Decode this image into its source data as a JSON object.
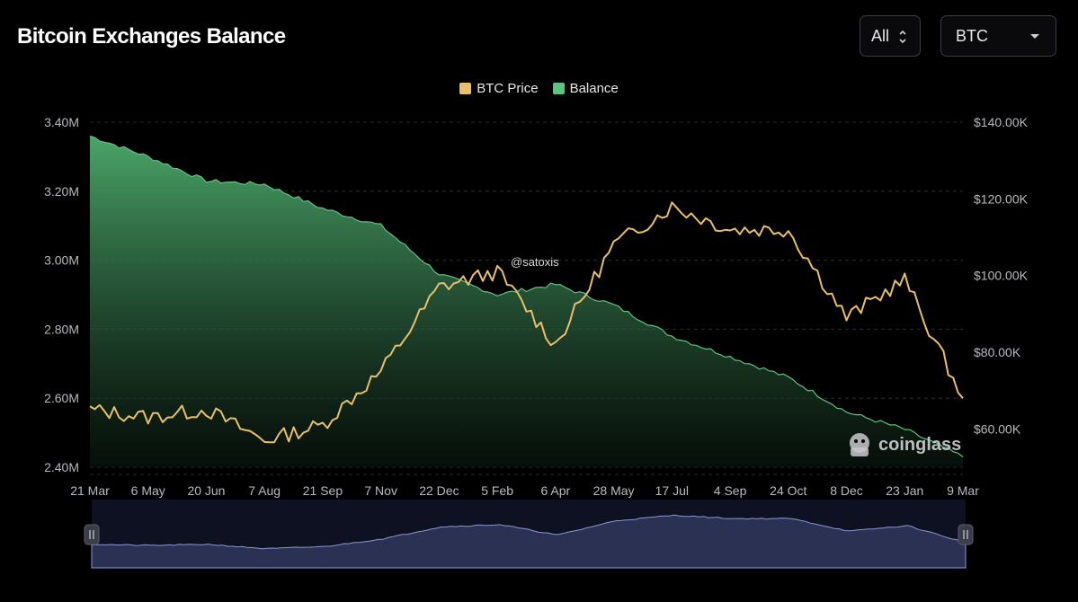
{
  "header": {
    "title": "Bitcoin Exchanges Balance",
    "range_label": "All",
    "asset_label": "BTC"
  },
  "watermark": "@satoxis",
  "brand": "coinglass",
  "colors": {
    "background": "#000000",
    "price": "#e8bf6a",
    "balance": "#5cc47f",
    "navigator": "#8b96d6"
  },
  "chart_data": {
    "type": "area",
    "title": "Bitcoin Exchanges Balance",
    "x_ticks": [
      "21 Mar",
      "6 May",
      "20 Jun",
      "7 Aug",
      "21 Sep",
      "7 Nov",
      "22 Dec",
      "5 Feb",
      "6 Apr",
      "28 May",
      "17 Jul",
      "4 Sep",
      "24 Oct",
      "8 Dec",
      "23 Jan",
      "9 Mar"
    ],
    "y_left_ticks": [
      "3.40M",
      "3.20M",
      "3.00M",
      "2.80M",
      "2.60M",
      "2.40M"
    ],
    "y_right_ticks": [
      "$140.00K",
      "$120.00K",
      "$100.00K",
      "$80.00K",
      "$60.00K"
    ],
    "y_left_range": [
      2.4,
      3.4
    ],
    "y_right_range": [
      50,
      140
    ],
    "legend": [
      "BTC Price",
      "Balance"
    ],
    "legend_position": "top-center",
    "grid": "horizontal dashed",
    "series": [
      {
        "name": "Balance",
        "axis": "left",
        "unit": "M BTC",
        "x": [
          "21 Mar",
          "6 May",
          "20 Jun",
          "7 Aug",
          "21 Sep",
          "7 Nov",
          "22 Dec",
          "5 Feb",
          "6 Apr",
          "28 May",
          "17 Jul",
          "4 Sep",
          "24 Oct",
          "8 Dec",
          "23 Jan",
          "9 Mar"
        ],
        "values": [
          3.36,
          3.3,
          3.23,
          3.22,
          3.15,
          3.1,
          2.96,
          2.9,
          2.93,
          2.87,
          2.78,
          2.72,
          2.66,
          2.56,
          2.51,
          2.43
        ]
      },
      {
        "name": "BTC Price",
        "axis": "right",
        "unit": "$K",
        "x": [
          "21 Mar",
          "6 May",
          "20 Jun",
          "7 Aug",
          "21 Sep",
          "7 Nov",
          "22 Dec",
          "5 Feb",
          "6 Apr",
          "28 May",
          "17 Jul",
          "4 Sep",
          "24 Oct",
          "8 Dec",
          "23 Jan",
          "9 Mar"
        ],
        "values": [
          65,
          63,
          65,
          57,
          61,
          75,
          97,
          101,
          82,
          108,
          118,
          112,
          112,
          89,
          99,
          68
        ]
      }
    ]
  }
}
